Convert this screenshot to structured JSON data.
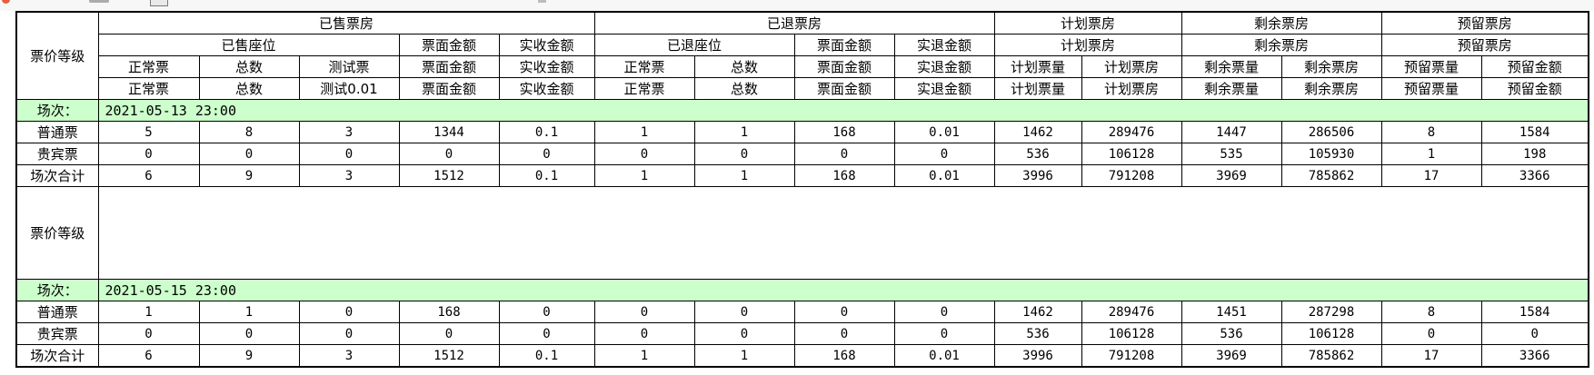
{
  "toolbar": {
    "icons": [
      "red-dot-icon",
      "gray-bar-icon",
      "window-icon",
      "small-mark-icon"
    ]
  },
  "colors": {
    "session_row_bg": "#ccffcc",
    "grid_border": "#000000",
    "topbar_bg": "#f7f7f8"
  },
  "header": {
    "price_level": "票价等级",
    "row1": [
      "已售票房",
      "已退票房",
      "计划票房",
      "剩余票房",
      "预留票房"
    ],
    "row2": [
      "已售座位",
      "票面金额",
      "实收金额",
      "已退座位",
      "票面金额",
      "实退金额",
      "计划票房",
      "剩余票房",
      "预留票房"
    ],
    "row3": [
      "正常票",
      "总数",
      "测试票",
      "票面金额",
      "实收金额",
      "正常票",
      "总数",
      "票面金额",
      "实退金额",
      "计划票量",
      "计划票房",
      "剩余票量",
      "剩余票房",
      "预留票量",
      "预留金额"
    ],
    "row4": [
      "正常票",
      "总数",
      "测试0.01",
      "票面金额",
      "实收金额",
      "正常票",
      "总数",
      "票面金额",
      "实退金额",
      "计划票量",
      "计划票房",
      "剩余票量",
      "剩余票房",
      "预留票量",
      "预留金额"
    ]
  },
  "spacer": {
    "label": "票价等级"
  },
  "sections": [
    {
      "session_label": "场次：",
      "session_value": "2021-05-13 23:00",
      "rows": [
        {
          "label": "普通票",
          "values": [
            "5",
            "8",
            "3",
            "1344",
            "0.1",
            "1",
            "1",
            "168",
            "0.01",
            "1462",
            "289476",
            "1447",
            "286506",
            "8",
            "1584"
          ]
        },
        {
          "label": "贵宾票",
          "values": [
            "0",
            "0",
            "0",
            "0",
            "0",
            "0",
            "0",
            "0",
            "0",
            "536",
            "106128",
            "535",
            "105930",
            "1",
            "198"
          ]
        },
        {
          "label": "场次合计",
          "values": [
            "6",
            "9",
            "3",
            "1512",
            "0.1",
            "1",
            "1",
            "168",
            "0.01",
            "3996",
            "791208",
            "3969",
            "785862",
            "17",
            "3366"
          ]
        }
      ]
    },
    {
      "session_label": "场次：",
      "session_value": "2021-05-15 23:00",
      "rows": [
        {
          "label": "普通票",
          "values": [
            "1",
            "1",
            "0",
            "168",
            "0",
            "0",
            "0",
            "0",
            "0",
            "1462",
            "289476",
            "1451",
            "287298",
            "8",
            "1584"
          ]
        },
        {
          "label": "贵宾票",
          "values": [
            "0",
            "0",
            "0",
            "0",
            "0",
            "0",
            "0",
            "0",
            "0",
            "536",
            "106128",
            "536",
            "106128",
            "0",
            "0"
          ]
        },
        {
          "label": "场次合计",
          "values": [
            "6",
            "9",
            "3",
            "1512",
            "0.1",
            "1",
            "1",
            "168",
            "0.01",
            "3996",
            "791208",
            "3969",
            "785862",
            "17",
            "3366"
          ]
        }
      ]
    }
  ]
}
